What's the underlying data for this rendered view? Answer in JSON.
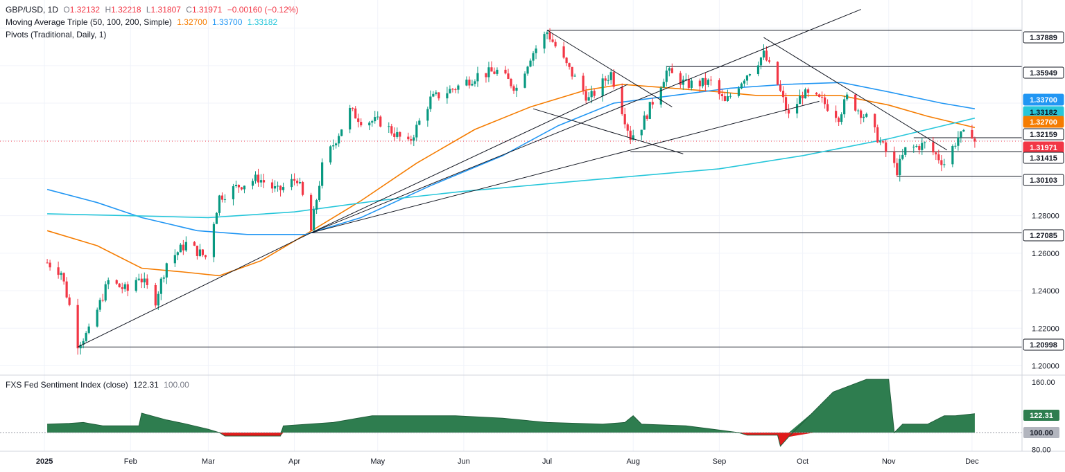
{
  "header": {
    "symbol": "GBP/USD, 1D",
    "o_label": "O",
    "o": "1.32132",
    "h_label": "H",
    "h": "1.32218",
    "l_label": "L",
    "l": "1.31807",
    "c_label": "C",
    "c": "1.31971",
    "change": "−0.00160 (−0.12%)",
    "ma_title": "Moving Average Triple (50, 100, 200, Simple)",
    "ma50": "1.32700",
    "ma100": "1.33700",
    "ma200": "1.33182",
    "pivots_title": "Pivots (Traditional, Daily, 1)"
  },
  "indicator": {
    "title": "FXS Fed Sentiment Index (close)",
    "value": "122.31",
    "base": "100.00"
  },
  "colors": {
    "up": "#089981",
    "down": "#f23645",
    "ma50": "#f57c00",
    "ma100": "#2196f3",
    "ma200": "#26c6da",
    "sentiment_pos": "#2e7d4f",
    "sentiment_neg": "#e01b1b",
    "trendline": "#131722"
  },
  "chart_data": [
    {
      "type": "candlestick",
      "title": "GBP/USD, 1D",
      "ylim": [
        1.195,
        1.395
      ],
      "y_ticks": [
        "1.20000",
        "1.22000",
        "1.24000",
        "1.26000",
        "1.28000"
      ],
      "x_ticks": [
        "2025",
        "Feb",
        "Mar",
        "Apr",
        "May",
        "Jun",
        "Jul",
        "Aug",
        "Sep",
        "Oct",
        "Nov",
        "Dec"
      ],
      "level_labels": [
        "1.37889",
        "1.35949",
        "1.33700",
        "1.33182",
        "1.32700",
        "1.32159",
        "1.31971",
        "1.31415",
        "1.30103",
        "1.27085",
        "1.20998"
      ],
      "horizontal_levels": [
        1.37889,
        1.35949,
        1.32159,
        1.31415,
        1.30103,
        1.27085,
        1.20998
      ],
      "last_close": 1.31971,
      "price_path": [
        [
          "2025-01-02",
          1.255
        ],
        [
          "2025-01-07",
          1.25
        ],
        [
          "2025-01-10",
          1.232
        ],
        [
          "2025-01-13",
          1.212
        ],
        [
          "2025-01-17",
          1.218
        ],
        [
          "2025-01-24",
          1.245
        ],
        [
          "2025-01-31",
          1.24
        ],
        [
          "2025-02-04",
          1.248
        ],
        [
          "2025-02-10",
          1.235
        ],
        [
          "2025-02-14",
          1.255
        ],
        [
          "2025-02-21",
          1.265
        ],
        [
          "2025-02-28",
          1.258
        ],
        [
          "2025-03-05",
          1.29
        ],
        [
          "2025-03-12",
          1.296
        ],
        [
          "2025-03-19",
          1.3
        ],
        [
          "2025-03-26",
          1.293
        ],
        [
          "2025-04-02",
          1.3
        ],
        [
          "2025-04-04",
          1.29
        ],
        [
          "2025-04-07",
          1.272
        ],
        [
          "2025-04-11",
          1.306
        ],
        [
          "2025-04-21",
          1.336
        ],
        [
          "2025-04-25",
          1.331
        ],
        [
          "2025-05-02",
          1.33
        ],
        [
          "2025-05-12",
          1.318
        ],
        [
          "2025-05-20",
          1.342
        ],
        [
          "2025-05-30",
          1.349
        ],
        [
          "2025-06-06",
          1.355
        ],
        [
          "2025-06-13",
          1.357
        ],
        [
          "2025-06-20",
          1.348
        ],
        [
          "2025-06-25",
          1.365
        ],
        [
          "2025-07-01",
          1.378
        ],
        [
          "2025-07-08",
          1.36
        ],
        [
          "2025-07-16",
          1.342
        ],
        [
          "2025-07-24",
          1.356
        ],
        [
          "2025-07-31",
          1.322
        ],
        [
          "2025-08-04",
          1.328
        ],
        [
          "2025-08-13",
          1.357
        ],
        [
          "2025-08-20",
          1.35
        ],
        [
          "2025-08-29",
          1.351
        ],
        [
          "2025-09-03",
          1.34
        ],
        [
          "2025-09-10",
          1.354
        ],
        [
          "2025-09-17",
          1.366
        ],
        [
          "2025-09-22",
          1.35
        ],
        [
          "2025-09-26",
          1.333
        ],
        [
          "2025-10-01",
          1.345
        ],
        [
          "2025-10-08",
          1.341
        ],
        [
          "2025-10-14",
          1.333
        ],
        [
          "2025-10-17",
          1.343
        ],
        [
          "2025-10-24",
          1.332
        ],
        [
          "2025-10-31",
          1.314
        ],
        [
          "2025-11-04",
          1.304
        ],
        [
          "2025-11-07",
          1.315
        ],
        [
          "2025-11-14",
          1.318
        ],
        [
          "2025-11-21",
          1.308
        ],
        [
          "2025-11-26",
          1.322
        ],
        [
          "2025-12-01",
          1.324
        ],
        [
          "2025-12-02",
          1.3197
        ]
      ],
      "ma_series": [
        {
          "name": "50",
          "points": [
            [
              "2025-01-02",
              1.272
            ],
            [
              "2025-01-20",
              1.264
            ],
            [
              "2025-02-05",
              1.252
            ],
            [
              "2025-02-20",
              1.25
            ],
            [
              "2025-03-05",
              1.248
            ],
            [
              "2025-03-20",
              1.256
            ],
            [
              "2025-04-05",
              1.27
            ],
            [
              "2025-04-25",
              1.288
            ],
            [
              "2025-05-15",
              1.308
            ],
            [
              "2025-06-05",
              1.326
            ],
            [
              "2025-06-25",
              1.338
            ],
            [
              "2025-07-15",
              1.347
            ],
            [
              "2025-07-28",
              1.35
            ],
            [
              "2025-08-15",
              1.348
            ],
            [
              "2025-09-01",
              1.346
            ],
            [
              "2025-09-15",
              1.344
            ],
            [
              "2025-10-01",
              1.344
            ],
            [
              "2025-10-15",
              1.344
            ],
            [
              "2025-11-01",
              1.339
            ],
            [
              "2025-11-15",
              1.333
            ],
            [
              "2025-12-02",
              1.327
            ]
          ]
        },
        {
          "name": "100",
          "points": [
            [
              "2025-01-02",
              1.294
            ],
            [
              "2025-01-20",
              1.287
            ],
            [
              "2025-02-05",
              1.279
            ],
            [
              "2025-02-25",
              1.272
            ],
            [
              "2025-03-15",
              1.27
            ],
            [
              "2025-04-05",
              1.27
            ],
            [
              "2025-04-25",
              1.279
            ],
            [
              "2025-05-20",
              1.296
            ],
            [
              "2025-06-15",
              1.312
            ],
            [
              "2025-07-05",
              1.328
            ],
            [
              "2025-07-25",
              1.34
            ],
            [
              "2025-08-15",
              1.344
            ],
            [
              "2025-09-05",
              1.348
            ],
            [
              "2025-09-25",
              1.35
            ],
            [
              "2025-10-15",
              1.351
            ],
            [
              "2025-11-01",
              1.346
            ],
            [
              "2025-11-20",
              1.34
            ],
            [
              "2025-12-02",
              1.337
            ]
          ]
        },
        {
          "name": "200",
          "points": [
            [
              "2025-01-02",
              1.281
            ],
            [
              "2025-02-01",
              1.28
            ],
            [
              "2025-03-01",
              1.279
            ],
            [
              "2025-04-01",
              1.282
            ],
            [
              "2025-05-01",
              1.288
            ],
            [
              "2025-06-01",
              1.293
            ],
            [
              "2025-07-01",
              1.297
            ],
            [
              "2025-08-01",
              1.301
            ],
            [
              "2025-09-01",
              1.305
            ],
            [
              "2025-10-01",
              1.312
            ],
            [
              "2025-11-01",
              1.321
            ],
            [
              "2025-12-02",
              1.332
            ]
          ]
        }
      ],
      "trendlines": [
        [
          [
            "2025-01-13",
            1.21
          ],
          [
            "2025-04-07",
            1.2709
          ]
        ],
        [
          [
            "2025-04-07",
            1.2709
          ],
          [
            "2025-10-22",
            1.39
          ]
        ],
        [
          [
            "2025-04-07",
            1.2709
          ],
          [
            "2025-10-07",
            1.341
          ]
        ],
        [
          [
            "2025-04-07",
            1.2709
          ],
          [
            "2025-07-30",
            1.35
          ]
        ],
        [
          [
            "2025-06-26",
            1.337
          ],
          [
            "2025-08-19",
            1.313
          ]
        ],
        [
          [
            "2025-07-01",
            1.3789
          ],
          [
            "2025-08-15",
            1.338
          ]
        ],
        [
          [
            "2025-09-17",
            1.375
          ],
          [
            "2025-11-22",
            1.315
          ]
        ]
      ]
    },
    {
      "type": "area",
      "title": "FXS Fed Sentiment Index (close)",
      "ylim": [
        78,
        168
      ],
      "baseline": 100,
      "y_ticks": [
        "160.00",
        "80.00"
      ],
      "value_labels": [
        "122.31",
        "100.00"
      ],
      "points": [
        [
          "2025-01-02",
          110
        ],
        [
          "2025-01-10",
          111
        ],
        [
          "2025-01-15",
          112
        ],
        [
          "2025-01-22",
          108
        ],
        [
          "2025-02-04",
          108
        ],
        [
          "2025-02-05",
          123
        ],
        [
          "2025-02-14",
          115
        ],
        [
          "2025-02-20",
          111
        ],
        [
          "2025-03-01",
          104
        ],
        [
          "2025-03-05",
          100
        ],
        [
          "2025-03-07",
          96
        ],
        [
          "2025-03-27",
          96
        ],
        [
          "2025-03-28",
          108
        ],
        [
          "2025-04-15",
          112
        ],
        [
          "2025-04-29",
          120
        ],
        [
          "2025-05-15",
          120
        ],
        [
          "2025-05-29",
          120
        ],
        [
          "2025-06-15",
          117
        ],
        [
          "2025-07-01",
          112
        ],
        [
          "2025-07-21",
          110
        ],
        [
          "2025-07-29",
          112
        ],
        [
          "2025-08-01",
          120
        ],
        [
          "2025-08-04",
          110
        ],
        [
          "2025-08-20",
          108
        ],
        [
          "2025-09-01",
          103
        ],
        [
          "2025-09-08",
          100
        ],
        [
          "2025-09-11",
          97
        ],
        [
          "2025-09-22",
          97
        ],
        [
          "2025-09-23",
          84
        ],
        [
          "2025-09-26",
          95
        ],
        [
          "2025-10-05",
          125
        ],
        [
          "2025-10-12",
          148
        ],
        [
          "2025-10-24",
          163
        ],
        [
          "2025-11-01",
          163
        ],
        [
          "2025-11-03",
          100
        ],
        [
          "2025-11-06",
          110
        ],
        [
          "2025-11-15",
          110
        ],
        [
          "2025-11-21",
          120
        ],
        [
          "2025-11-25",
          120
        ],
        [
          "2025-12-02",
          122.31
        ]
      ]
    }
  ]
}
